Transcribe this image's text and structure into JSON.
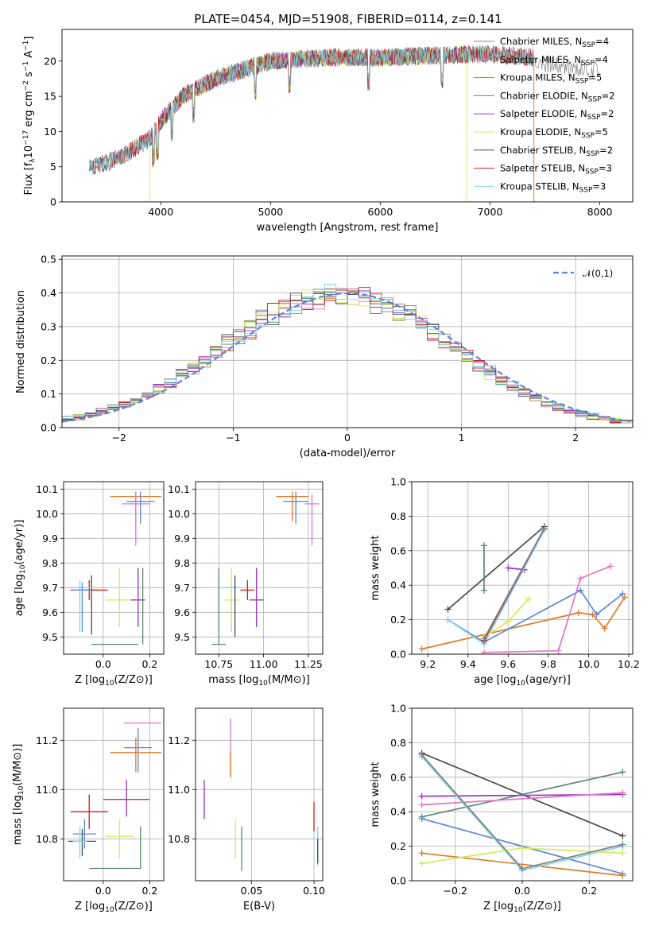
{
  "figure": {
    "title": "PLATE=0454, MJD=51908, FIBERID=0114, z=0.141"
  },
  "colors": {
    "chabrier_miles": "#808080",
    "salpeter_miles": "#e377c2",
    "kroupa_miles": "#b5822f",
    "chabrier_elodie": "#5b8a72",
    "salpeter_elodie": "#9b30c8",
    "kroupa_elodie": "#d4ec5a",
    "chabrier_stelib": "#4a4a4a",
    "salpeter_stelib": "#c81e1e",
    "kroupa_stelib": "#7fd6e6",
    "orange": "#e07b27",
    "blue": "#5b87d8",
    "gauss": "#5b87d8"
  },
  "chart_data": [
    {
      "id": "spectrum",
      "type": "line",
      "title": "PLATE=0454, MJD=51908, FIBERID=0114, z=0.141",
      "xlabel": "wavelength [Angstrom, rest frame]",
      "ylabel": "Flux [f_λ 10^-17 erg cm^-2 s^-1 A^-1]",
      "xlim": [
        3100,
        8300
      ],
      "ylim": [
        0,
        24.5
      ],
      "xticks": [
        4000,
        5000,
        6000,
        7000,
        8000
      ],
      "yticks": [
        0,
        5,
        10,
        15,
        20
      ],
      "legend_position": "upper-right",
      "continuum": {
        "x": [
          3350,
          3500,
          3700,
          3900,
          4000,
          4200,
          4500,
          4800,
          5000,
          5500,
          6000,
          6500,
          7000,
          7400
        ],
        "y": [
          5,
          5.5,
          7,
          9,
          11.5,
          15,
          17.5,
          19,
          20,
          20.5,
          20.5,
          20.8,
          21,
          20.5
        ]
      },
      "series": [
        {
          "name": "Chabrier MILES, N_SSP=4",
          "color": "#808080",
          "xmin": 3350,
          "xmax": 8000
        },
        {
          "name": "Salpeter MILES, N_SSP=4",
          "color": "#e377c2",
          "xmin": 3500,
          "xmax": 7400
        },
        {
          "name": "Kroupa MILES, N_SSP=5",
          "color": "#b5822f",
          "xmin": 3500,
          "xmax": 7400
        },
        {
          "name": "Chabrier ELODIE, N_SSP=2",
          "color": "#5b8a72",
          "xmin": 3900,
          "xmax": 6800
        },
        {
          "name": "Salpeter ELODIE, N_SSP=2",
          "color": "#9b30c8",
          "xmin": 3900,
          "xmax": 6800
        },
        {
          "name": "Kroupa ELODIE, N_SSP=5",
          "color": "#d4ec5a",
          "xmin": 3900,
          "xmax": 6800
        },
        {
          "name": "Chabrier STELIB, N_SSP=2",
          "color": "#4a4a4a",
          "xmin": 3350,
          "xmax": 7400
        },
        {
          "name": "Salpeter STELIB, N_SSP=3",
          "color": "#c81e1e",
          "xmin": 3350,
          "xmax": 7400
        },
        {
          "name": "Kroupa STELIB, N_SSP=3",
          "color": "#7fd6e6",
          "xmin": 3350,
          "xmax": 7400
        }
      ]
    },
    {
      "id": "residuals",
      "type": "histogram",
      "xlabel": "(data-model)/error",
      "ylabel": "Normed distribution",
      "xlim": [
        -2.5,
        2.5
      ],
      "ylim": [
        0,
        0.51
      ],
      "xticks": [
        -2,
        -1,
        0,
        1,
        2
      ],
      "yticks": [
        0.0,
        0.1,
        0.2,
        0.3,
        0.4,
        0.5
      ],
      "bin_width": 0.1,
      "legend": "𝒩(0,1)",
      "legend_position": "upper-right",
      "grid": true
    },
    {
      "id": "age_vs_Z",
      "type": "errorbar",
      "xlabel": "Z [log10(Z/Z⊙)]",
      "ylabel": "age [log10(age/yr)]",
      "xlim": [
        -0.17,
        0.26
      ],
      "ylim": [
        9.43,
        10.13
      ],
      "xticks": [
        0.0,
        0.2
      ],
      "yticks": [
        9.5,
        9.6,
        9.7,
        9.8,
        9.9,
        10.0,
        10.1
      ],
      "points": [
        {
          "color": "#e07b27",
          "x": 0.14,
          "xerr": 0.11,
          "y": 10.07,
          "yerr": [
            0.1,
            0.02
          ]
        },
        {
          "color": "#5b87d8",
          "x": 0.16,
          "xerr": 0.06,
          "y": 10.05,
          "yerr": [
            0.09,
            0.04
          ]
        },
        {
          "color": "#e377c2",
          "x": 0.14,
          "xerr": 0.06,
          "y": 10.04,
          "yerr": [
            0.17,
            0.04
          ]
        },
        {
          "color": "#4a4a4a",
          "x": -0.05,
          "xerr": 0.03,
          "y": 9.69,
          "yerr": [
            0.18,
            0.06
          ]
        },
        {
          "color": "#c81e1e",
          "x": -0.06,
          "xerr": 0.08,
          "y": 9.69,
          "yerr": [
            0.04,
            0.04
          ]
        },
        {
          "color": "#7fd6e6",
          "x": -0.1,
          "xerr": 0.05,
          "y": 9.7,
          "yerr": [
            0.18,
            0.03
          ]
        },
        {
          "color": "#5b87d8",
          "x": -0.09,
          "xerr": 0.04,
          "y": 9.69,
          "yerr": [
            0.17,
            0.03
          ]
        },
        {
          "color": "#d4ec5a",
          "x": 0.07,
          "xerr": 0.06,
          "y": 9.65,
          "yerr": [
            0.11,
            0.13
          ]
        },
        {
          "color": "#9b30c8",
          "x": 0.15,
          "xerr": 0.03,
          "y": 9.65,
          "yerr": [
            0.11,
            0.13
          ]
        },
        {
          "color": "#5b8a72",
          "x": 0.05,
          "xerr": 0.1,
          "y": 9.47,
          "yerr": [
            0.0,
            0.0
          ]
        },
        {
          "color": "#5b8a72",
          "x": 0.17,
          "xerr": 0.0,
          "y": 9.65,
          "yerr": [
            0.18,
            0.13
          ]
        }
      ]
    },
    {
      "id": "age_vs_mass",
      "type": "errorbar",
      "xlabel": "mass [log10(M/M⊙)]",
      "ylabel": "",
      "xlim": [
        10.62,
        11.33
      ],
      "ylim": [
        9.43,
        10.13
      ],
      "xticks": [
        10.75,
        11.0,
        11.25
      ],
      "yticks": [
        9.5,
        9.6,
        9.7,
        9.8,
        9.9,
        10.0,
        10.1
      ],
      "points": [
        {
          "color": "#e07b27",
          "x": 11.16,
          "xerr": 0.09,
          "y": 10.07,
          "yerr": [
            0.1,
            0.02
          ]
        },
        {
          "color": "#5b87d8",
          "x": 11.18,
          "xerr": 0.07,
          "y": 10.05,
          "yerr": [
            0.09,
            0.04
          ]
        },
        {
          "color": "#e377c2",
          "x": 11.27,
          "xerr": 0.04,
          "y": 10.04,
          "yerr": [
            0.17,
            0.04
          ]
        },
        {
          "color": "#c81e1e",
          "x": 10.91,
          "xerr": 0.04,
          "y": 9.69,
          "yerr": [
            0.04,
            0.04
          ]
        },
        {
          "color": "#7fd6e6",
          "x": 10.82,
          "xerr": 0.05,
          "y": 9.7,
          "yerr": [
            0.18,
            0.03
          ]
        },
        {
          "color": "#d4ec5a",
          "x": 10.82,
          "xerr": 0.04,
          "y": 9.65,
          "yerr": [
            0.11,
            0.13
          ]
        },
        {
          "color": "#9b30c8",
          "x": 10.96,
          "xerr": 0.04,
          "y": 9.65,
          "yerr": [
            0.11,
            0.13
          ]
        },
        {
          "color": "#5b8a72",
          "x": 10.75,
          "xerr": 0.04,
          "y": 9.47,
          "yerr": [
            0.0,
            0.31
          ]
        },
        {
          "color": "#4a4a4a",
          "x": 10.84,
          "xerr": 0.0,
          "y": 9.65,
          "yerr": [
            0.15,
            0.1
          ]
        }
      ]
    },
    {
      "id": "mass_weight_vs_age",
      "type": "line",
      "xlabel": "age [log10(age/yr)]",
      "ylabel": "mass weight",
      "xlim": [
        9.12,
        10.22
      ],
      "ylim": [
        0,
        1
      ],
      "xticks": [
        9.2,
        9.4,
        9.6,
        9.8,
        10.0,
        10.2
      ],
      "yticks": [
        0.0,
        0.2,
        0.4,
        0.6,
        0.8,
        1.0
      ],
      "series": [
        {
          "color": "#e07b27",
          "x": [
            9.17,
            9.95,
            10.02,
            10.08,
            10.18
          ],
          "y": [
            0.03,
            0.24,
            0.23,
            0.15,
            0.33
          ]
        },
        {
          "color": "#5b87d8",
          "x": [
            9.3,
            9.48,
            9.96,
            10.04,
            10.17
          ],
          "y": [
            0.2,
            0.07,
            0.37,
            0.23,
            0.35
          ]
        },
        {
          "color": "#e377c2",
          "x": [
            9.48,
            9.85,
            9.96,
            10.11
          ],
          "y": [
            0.01,
            0.02,
            0.44,
            0.51
          ]
        },
        {
          "color": "#4a4a4a",
          "x": [
            9.3,
            9.78
          ],
          "y": [
            0.26,
            0.74
          ]
        },
        {
          "color": "#9b30c8",
          "x": [
            9.6,
            9.68
          ],
          "y": [
            0.5,
            0.49
          ]
        },
        {
          "color": "#7fd6e6",
          "x": [
            9.3,
            9.48,
            9.78
          ],
          "y": [
            0.2,
            0.06,
            0.72
          ]
        },
        {
          "color": "#d4ec5a",
          "x": [
            9.48,
            9.6,
            9.7
          ],
          "y": [
            0.1,
            0.19,
            0.32
          ]
        },
        {
          "color": "#5b8a72",
          "x": [
            9.48,
            9.48
          ],
          "y": [
            0.37,
            0.63
          ]
        },
        {
          "color": "#c81e1e",
          "x": [
            9.48,
            9.78
          ],
          "y": [
            0.08,
            0.73
          ]
        },
        {
          "color": "#808080",
          "x": [
            9.48,
            9.78
          ],
          "y": [
            0.09,
            0.73
          ]
        }
      ]
    },
    {
      "id": "mass_vs_Z",
      "type": "errorbar",
      "xlabel": "Z [log10(Z/Z⊙)]",
      "ylabel": "mass [log10(M/M⊙)]",
      "xlim": [
        -0.17,
        0.26
      ],
      "ylim": [
        10.63,
        11.33
      ],
      "xticks": [
        0.0,
        0.2
      ],
      "yticks": [
        10.8,
        11.0,
        11.2
      ],
      "points": [
        {
          "color": "#e377c2",
          "x": 0.17,
          "xerr": 0.08,
          "y": 11.27,
          "yerr": [
            0.0,
            0.0
          ]
        },
        {
          "color": "#5b87d8",
          "x": 0.15,
          "xerr": 0.06,
          "y": 11.17,
          "yerr": [
            0.1,
            0.08
          ]
        },
        {
          "color": "#e07b27",
          "x": 0.14,
          "xerr": 0.11,
          "y": 11.15,
          "yerr": [
            0.08,
            0.06
          ]
        },
        {
          "color": "#9b30c8",
          "x": 0.1,
          "xerr": 0.1,
          "y": 10.96,
          "yerr": [
            0.07,
            0.08
          ]
        },
        {
          "color": "#c81e1e",
          "x": -0.06,
          "xerr": 0.08,
          "y": 10.91,
          "yerr": [
            0.07,
            0.07
          ]
        },
        {
          "color": "#d4ec5a",
          "x": 0.07,
          "xerr": 0.06,
          "y": 10.81,
          "yerr": [
            0.09,
            0.07
          ]
        },
        {
          "color": "#5b87d8",
          "x": -0.08,
          "xerr": 0.05,
          "y": 10.82,
          "yerr": [
            0.06,
            0.06
          ]
        },
        {
          "color": "#4a4a4a",
          "x": -0.09,
          "xerr": 0.06,
          "y": 10.79,
          "yerr": [
            0.06,
            0.05
          ]
        },
        {
          "color": "#7fd6e6",
          "x": -0.1,
          "xerr": 0.03,
          "y": 10.79,
          "yerr": [
            0.07,
            0.06
          ]
        },
        {
          "color": "#5b8a72",
          "x": 0.05,
          "xerr": 0.11,
          "y": 10.68,
          "yerr": [
            0.0,
            0.0
          ]
        },
        {
          "color": "#5b8a72",
          "x": 0.16,
          "xerr": 0.0,
          "y": 10.75,
          "yerr": [
            0.07,
            0.1
          ]
        }
      ]
    },
    {
      "id": "mass_vs_EBV",
      "type": "errorbar",
      "xlabel": "E(B-V)",
      "ylabel": "",
      "xlim": [
        0.005,
        0.107
      ],
      "ylim": [
        10.63,
        11.33
      ],
      "xticks": [
        0.05,
        0.1
      ],
      "yticks": [
        10.8,
        11.0,
        11.2
      ],
      "points": [
        {
          "color": "#e377c2",
          "x": 0.033,
          "xerr": 0,
          "y": 11.17,
          "yerr": [
            0.12,
            0.12
          ]
        },
        {
          "color": "#e07b27",
          "x": 0.033,
          "xerr": 0,
          "y": 11.1,
          "yerr": [
            0.05,
            0.05
          ]
        },
        {
          "color": "#9b30c8",
          "x": 0.012,
          "xerr": 0,
          "y": 10.96,
          "yerr": [
            0.08,
            0.08
          ]
        },
        {
          "color": "#d4ec5a",
          "x": 0.037,
          "xerr": 0,
          "y": 10.8,
          "yerr": [
            0.08,
            0.08
          ]
        },
        {
          "color": "#5b8a72",
          "x": 0.042,
          "xerr": 0,
          "y": 10.76,
          "yerr": [
            0.09,
            0.09
          ]
        },
        {
          "color": "#c81e1e",
          "x": 0.1,
          "xerr": 0,
          "y": 10.89,
          "yerr": [
            0.06,
            0.06
          ]
        },
        {
          "color": "#7fd6e6",
          "x": 0.103,
          "xerr": 0,
          "y": 10.77,
          "yerr": [
            0.08,
            0.08
          ]
        },
        {
          "color": "#4a4a4a",
          "x": 0.103,
          "xerr": 0,
          "y": 10.75,
          "yerr": [
            0.05,
            0.05
          ]
        }
      ]
    },
    {
      "id": "mass_weight_vs_Z",
      "type": "line",
      "xlabel": "Z [log10(Z/Z⊙)]",
      "ylabel": "mass weight",
      "xlim": [
        -0.33,
        0.33
      ],
      "ylim": [
        0,
        1
      ],
      "xticks": [
        -0.2,
        0.0,
        0.2
      ],
      "yticks": [
        0.0,
        0.2,
        0.4,
        0.6,
        0.8,
        1.0
      ],
      "series": [
        {
          "color": "#4a4a4a",
          "x": [
            -0.3,
            0.3
          ],
          "y": [
            0.74,
            0.26
          ]
        },
        {
          "color": "#5b8a72",
          "x": [
            -0.3,
            0.3
          ],
          "y": [
            0.37,
            0.63
          ]
        },
        {
          "color": "#9b30c8",
          "x": [
            -0.3,
            0.3
          ],
          "y": [
            0.49,
            0.5
          ]
        },
        {
          "color": "#e377c2",
          "x": [
            -0.3,
            0.3
          ],
          "y": [
            0.44,
            0.51
          ]
        },
        {
          "color": "#5b87d8",
          "x": [
            -0.3,
            0.3
          ],
          "y": [
            0.36,
            0.04
          ]
        },
        {
          "color": "#e07b27",
          "x": [
            -0.3,
            0.3
          ],
          "y": [
            0.16,
            0.03
          ]
        },
        {
          "color": "#7fd6e6",
          "x": [
            -0.3,
            0.0,
            0.3
          ],
          "y": [
            0.72,
            0.06,
            0.2
          ]
        },
        {
          "color": "#d4ec5a",
          "x": [
            -0.3,
            0.0,
            0.3
          ],
          "y": [
            0.1,
            0.19,
            0.16
          ]
        },
        {
          "color": "#808080",
          "x": [
            -0.3,
            0.0,
            0.3
          ],
          "y": [
            0.73,
            0.07,
            0.21
          ]
        }
      ]
    }
  ]
}
